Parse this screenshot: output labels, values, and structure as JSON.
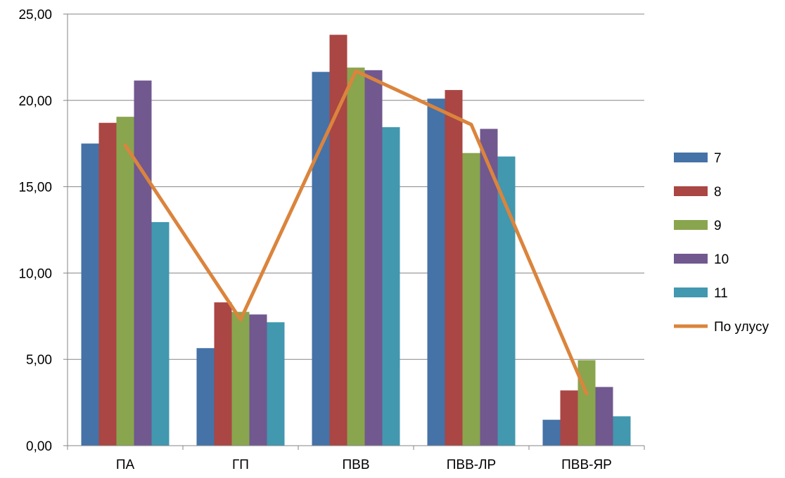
{
  "chart_data": {
    "type": "bar",
    "title": "",
    "xlabel": "",
    "ylabel": "",
    "ylim": [
      0,
      25
    ],
    "yticks": [
      "0,00",
      "5,00",
      "10,00",
      "15,00",
      "20,00",
      "25,00"
    ],
    "ytick_values": [
      0,
      5,
      10,
      15,
      20,
      25
    ],
    "categories": [
      "ПА",
      "ГП",
      "ПВВ",
      "ПВВ-ЛР",
      "ПВВ-ЯР"
    ],
    "grid": true,
    "legend_position": "right",
    "series": [
      {
        "name": "7",
        "color": "#4572A7",
        "values": [
          17.5,
          5.65,
          21.65,
          20.1,
          1.5
        ]
      },
      {
        "name": "8",
        "color": "#AA4643",
        "values": [
          18.7,
          8.3,
          23.8,
          20.6,
          3.2
        ]
      },
      {
        "name": "9",
        "color": "#89A54E",
        "values": [
          19.05,
          7.75,
          21.9,
          16.95,
          4.95
        ]
      },
      {
        "name": "10",
        "color": "#71588F",
        "values": [
          21.15,
          7.6,
          21.75,
          18.35,
          3.4
        ]
      },
      {
        "name": "11",
        "color": "#4198AF",
        "values": [
          12.95,
          7.15,
          18.45,
          16.75,
          1.7
        ]
      }
    ],
    "line_series": {
      "name": "По улусу",
      "color": "#DB843D",
      "values": [
        17.4,
        7.3,
        21.7,
        18.6,
        3.0
      ]
    }
  }
}
